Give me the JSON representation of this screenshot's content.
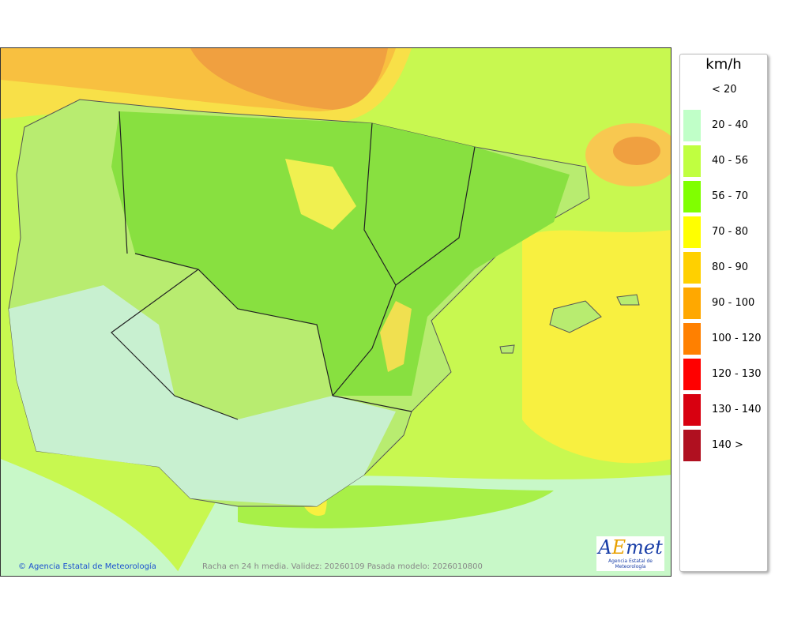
{
  "map": {
    "credit": "© Agencia Estatal de Meteorología",
    "caption": "Racha en 24 h media. Validez: 20260109 Pasada modelo: 2026010800",
    "logo": {
      "text_a": "A",
      "text_e": "E",
      "text_met": "met",
      "subtitle": "Agencia Estatal de Meteorología"
    }
  },
  "legend": {
    "unit": "km/h",
    "items": [
      {
        "label": "< 20",
        "color": null
      },
      {
        "label": "20 - 40",
        "color": "#c0ffc8"
      },
      {
        "label": "40 - 56",
        "color": "#c0ff40"
      },
      {
        "label": "56 - 70",
        "color": "#80ff00"
      },
      {
        "label": "70 - 80",
        "color": "#ffff00"
      },
      {
        "label": "80 - 90",
        "color": "#ffd000"
      },
      {
        "label": "90 - 100",
        "color": "#ffa800"
      },
      {
        "label": "100 - 120",
        "color": "#ff8000"
      },
      {
        "label": "120 - 130",
        "color": "#ff0000"
      },
      {
        "label": "130 - 140",
        "color": "#d80010"
      },
      {
        "label": "140 >",
        "color": "#b01020"
      }
    ]
  }
}
